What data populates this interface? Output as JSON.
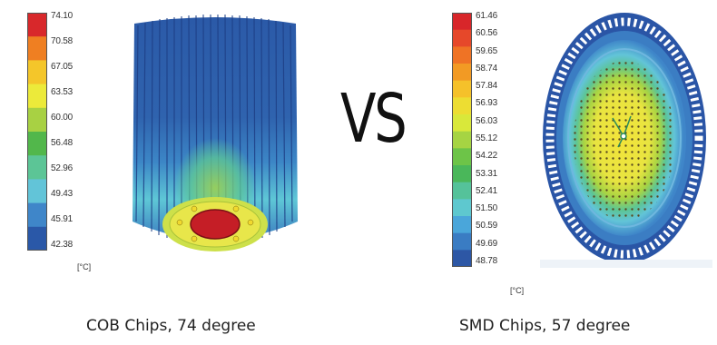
{
  "left": {
    "scale_values": [
      "74.10",
      "70.58",
      "67.05",
      "63.53",
      "60.00",
      "56.48",
      "52.96",
      "49.43",
      "45.91",
      "42.38"
    ],
    "scale_colors": [
      "#d8282b",
      "#ef7f22",
      "#f4c62a",
      "#ecea3a",
      "#a8d143",
      "#52b74b",
      "#5cc596",
      "#62c4d8",
      "#3f86c9",
      "#2a58a8"
    ],
    "unit": "[°C]",
    "caption": "COB Chips, 74 degree"
  },
  "separator": "VS",
  "right": {
    "scale_values": [
      "61.46",
      "60.56",
      "59.65",
      "58.74",
      "57.84",
      "56.93",
      "56.03",
      "55.12",
      "54.22",
      "53.31",
      "52.41",
      "51.50",
      "50.59",
      "49.69",
      "48.78"
    ],
    "scale_colors": [
      "#d8262a",
      "#e6482a",
      "#ef7325",
      "#f29a24",
      "#f5c12a",
      "#eddd32",
      "#d9e83a",
      "#a6d443",
      "#6dc448",
      "#4ab75a",
      "#55c29a",
      "#5ec8cf",
      "#4aa6da",
      "#3a7cc3",
      "#2d57a5"
    ],
    "unit": "[°C]",
    "caption": "SMD Chips, 57 degree"
  }
}
